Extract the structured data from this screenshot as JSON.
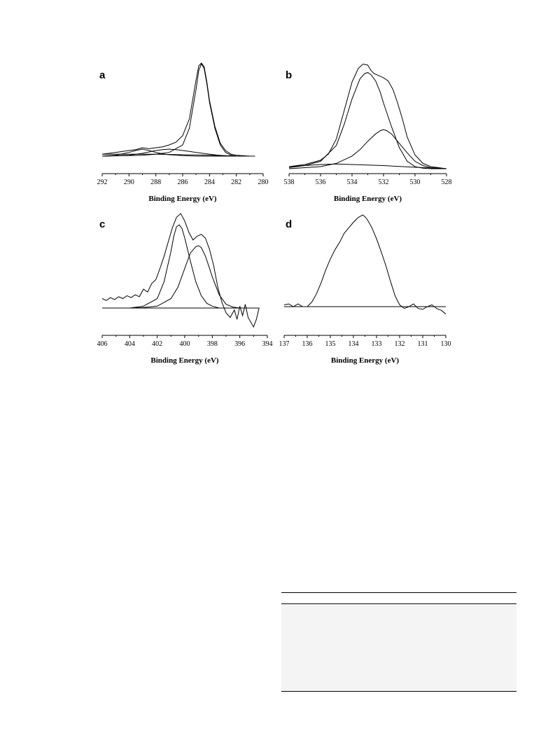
{
  "chart_data": [
    {
      "type": "line",
      "panel": "a",
      "xlabel": "Binding Energy (eV)",
      "xlim": [
        292,
        280
      ],
      "xticks": [
        292,
        290,
        288,
        286,
        284,
        282,
        280
      ],
      "series": [
        {
          "x": [
            292,
            291,
            290,
            289.5,
            289,
            288.5,
            288,
            287.5,
            287,
            286.5,
            286,
            285.5,
            285,
            284.8,
            284.6,
            284.4,
            284.2,
            284,
            283.6,
            283.2,
            282.8,
            282.4,
            282,
            281,
            280.6
          ],
          "y": [
            0.02,
            0.04,
            0.06,
            0.07,
            0.09,
            0.08,
            0.09,
            0.1,
            0.12,
            0.15,
            0.22,
            0.4,
            0.82,
            0.97,
            1.0,
            0.96,
            0.8,
            0.6,
            0.32,
            0.14,
            0.06,
            0.02,
            0.01,
            0.0,
            0.0
          ]
        },
        {
          "x": [
            292,
            290,
            289,
            288,
            287,
            286,
            285.5,
            285,
            284.8,
            284.6,
            284.4,
            284.2,
            284,
            283.6,
            283.2,
            282.8,
            282.4,
            282,
            281,
            280.6
          ],
          "y": [
            0.0,
            0.005,
            0.01,
            0.02,
            0.04,
            0.12,
            0.3,
            0.72,
            0.92,
            0.99,
            0.94,
            0.78,
            0.58,
            0.3,
            0.12,
            0.04,
            0.01,
            0.0,
            0.0,
            0.0
          ]
        },
        {
          "x": [
            292,
            290,
            289,
            288,
            287.5,
            287,
            286.5,
            286,
            285.5,
            285,
            284.5,
            284,
            283.5,
            283,
            282,
            281,
            280.6
          ],
          "y": [
            0.0,
            0.01,
            0.03,
            0.06,
            0.07,
            0.075,
            0.07,
            0.06,
            0.05,
            0.04,
            0.03,
            0.02,
            0.012,
            0.006,
            0.0,
            0.0,
            0.0
          ]
        },
        {
          "x": [
            292,
            291,
            290,
            289.5,
            289,
            288.5,
            288,
            287.5,
            287,
            286,
            285,
            284,
            283,
            282,
            281,
            280.6
          ],
          "y": [
            0.0,
            0.01,
            0.04,
            0.06,
            0.075,
            0.06,
            0.04,
            0.025,
            0.015,
            0.005,
            0.0,
            0.0,
            0.0,
            0.0,
            0.0,
            0.0
          ]
        },
        {
          "x": [
            292,
            290,
            288,
            286,
            284,
            283,
            282,
            281,
            280.6
          ],
          "y": [
            0.02,
            0.02,
            0.02,
            0.015,
            0.01,
            0.005,
            0.0,
            0.0,
            0.0
          ]
        }
      ]
    },
    {
      "type": "line",
      "panel": "b",
      "xlabel": "Binding Energy (eV)",
      "xlim": [
        538,
        528
      ],
      "xticks": [
        538,
        536,
        534,
        532,
        530,
        528
      ],
      "series": [
        {
          "x": [
            538,
            537,
            536,
            535.5,
            535,
            534.5,
            534,
            533.6,
            533.3,
            533,
            532.8,
            532.6,
            532.3,
            532,
            531.7,
            531.4,
            531.1,
            530.8,
            530.5,
            530,
            529.5,
            529,
            528.5,
            528
          ],
          "y": [
            0.02,
            0.04,
            0.08,
            0.14,
            0.28,
            0.55,
            0.82,
            0.95,
            0.99,
            0.98,
            0.93,
            0.9,
            0.88,
            0.86,
            0.83,
            0.75,
            0.62,
            0.47,
            0.3,
            0.13,
            0.05,
            0.02,
            0.01,
            0.0
          ]
        },
        {
          "x": [
            538,
            537,
            536,
            535,
            534.5,
            534,
            533.5,
            533.2,
            533,
            532.8,
            532.5,
            532.2,
            532,
            531.5,
            531,
            530.5,
            530,
            529.5,
            529,
            528
          ],
          "y": [
            0.01,
            0.03,
            0.07,
            0.22,
            0.42,
            0.66,
            0.85,
            0.9,
            0.91,
            0.89,
            0.83,
            0.72,
            0.62,
            0.4,
            0.2,
            0.07,
            0.02,
            0.005,
            0.0,
            0.0
          ]
        },
        {
          "x": [
            538,
            536,
            535,
            534,
            533.5,
            533,
            532.5,
            532.2,
            532,
            531.8,
            531.5,
            531,
            530.5,
            530,
            529.5,
            529,
            528.5,
            528
          ],
          "y": [
            0.0,
            0.02,
            0.05,
            0.12,
            0.18,
            0.26,
            0.33,
            0.36,
            0.37,
            0.36,
            0.33,
            0.24,
            0.15,
            0.07,
            0.03,
            0.01,
            0.005,
            0.0
          ]
        },
        {
          "x": [
            538,
            537,
            536,
            535,
            534,
            533,
            532,
            531,
            530,
            529,
            528
          ],
          "y": [
            0.02,
            0.03,
            0.04,
            0.045,
            0.04,
            0.035,
            0.03,
            0.022,
            0.014,
            0.007,
            0.0
          ]
        }
      ]
    },
    {
      "type": "line",
      "panel": "c",
      "xlabel": "Binding Energy (eV)",
      "xlim": [
        406,
        394
      ],
      "xticks": [
        406,
        404,
        402,
        400,
        398,
        396,
        394
      ],
      "series": [
        {
          "x": [
            406,
            405.7,
            405.4,
            405.1,
            404.8,
            404.5,
            404.2,
            403.9,
            403.6,
            403.3,
            403,
            402.7,
            402.4,
            402.1,
            401.8,
            401.5,
            401.2,
            400.9,
            400.6,
            400.3,
            400,
            399.7,
            399.4,
            399.1,
            398.8,
            398.5,
            398.2,
            397.9,
            397.6,
            397.3,
            397,
            396.7,
            396.4,
            396.2,
            396,
            395.8,
            395.6,
            395.4,
            395.2,
            395,
            394.8,
            394.6
          ],
          "y": [
            0.1,
            0.08,
            0.11,
            0.09,
            0.12,
            0.1,
            0.13,
            0.11,
            0.14,
            0.12,
            0.2,
            0.17,
            0.26,
            0.3,
            0.42,
            0.55,
            0.7,
            0.85,
            0.96,
            1.0,
            0.92,
            0.8,
            0.72,
            0.76,
            0.78,
            0.74,
            0.62,
            0.45,
            0.22,
            0.06,
            -0.05,
            -0.1,
            -0.02,
            -0.12,
            0.02,
            -0.08,
            0.04,
            -0.1,
            -0.15,
            -0.2,
            -0.12,
            0.0
          ]
        },
        {
          "x": [
            406,
            404,
            403,
            402,
            401.5,
            401,
            400.8,
            400.6,
            400.4,
            400.2,
            400,
            399.6,
            399.2,
            398.8,
            398.4,
            398,
            397.5,
            397,
            396,
            395,
            394.6
          ],
          "y": [
            0.0,
            0.0,
            0.02,
            0.1,
            0.28,
            0.6,
            0.76,
            0.86,
            0.88,
            0.84,
            0.74,
            0.5,
            0.28,
            0.13,
            0.05,
            0.02,
            0.0,
            0.0,
            0.0,
            0.0,
            0.0
          ]
        },
        {
          "x": [
            406,
            404,
            403,
            402,
            401,
            400.5,
            400,
            399.6,
            399.2,
            399,
            398.8,
            398.5,
            398.2,
            398,
            397.5,
            397,
            396.5,
            396,
            395,
            394.6
          ],
          "y": [
            0.0,
            0.0,
            0.005,
            0.02,
            0.1,
            0.22,
            0.42,
            0.58,
            0.65,
            0.66,
            0.64,
            0.55,
            0.42,
            0.33,
            0.14,
            0.04,
            0.01,
            0.0,
            0.0,
            0.0
          ]
        },
        {
          "x": [
            406,
            394.6
          ],
          "y": [
            0.0,
            0.0
          ]
        }
      ]
    },
    {
      "type": "line",
      "panel": "d",
      "xlabel": "Binding Energy (eV)",
      "xlim": [
        137,
        130
      ],
      "xticks": [
        137,
        136,
        135,
        134,
        133,
        132,
        131,
        130
      ],
      "series": [
        {
          "x": [
            137,
            136.8,
            136.6,
            136.4,
            136.2,
            136,
            135.8,
            135.6,
            135.4,
            135.2,
            135,
            134.8,
            134.6,
            134.4,
            134.2,
            134,
            133.8,
            133.6,
            133.5,
            133.4,
            133.2,
            133,
            132.8,
            132.6,
            132.4,
            132.2,
            132,
            131.8,
            131.6,
            131.4,
            131.2,
            131,
            130.8,
            130.6,
            130.4,
            130.2,
            130
          ],
          "y": [
            0.02,
            0.03,
            0.0,
            0.03,
            0.0,
            0.0,
            0.05,
            0.14,
            0.26,
            0.4,
            0.52,
            0.62,
            0.7,
            0.8,
            0.86,
            0.92,
            0.97,
            1.0,
            0.98,
            0.95,
            0.86,
            0.74,
            0.6,
            0.45,
            0.28,
            0.12,
            0.02,
            -0.02,
            0.0,
            0.03,
            -0.02,
            -0.03,
            0.0,
            0.02,
            -0.02,
            -0.04,
            -0.08
          ]
        },
        {
          "x": [
            137,
            130
          ],
          "y": [
            0.0,
            0.0
          ]
        }
      ]
    }
  ]
}
